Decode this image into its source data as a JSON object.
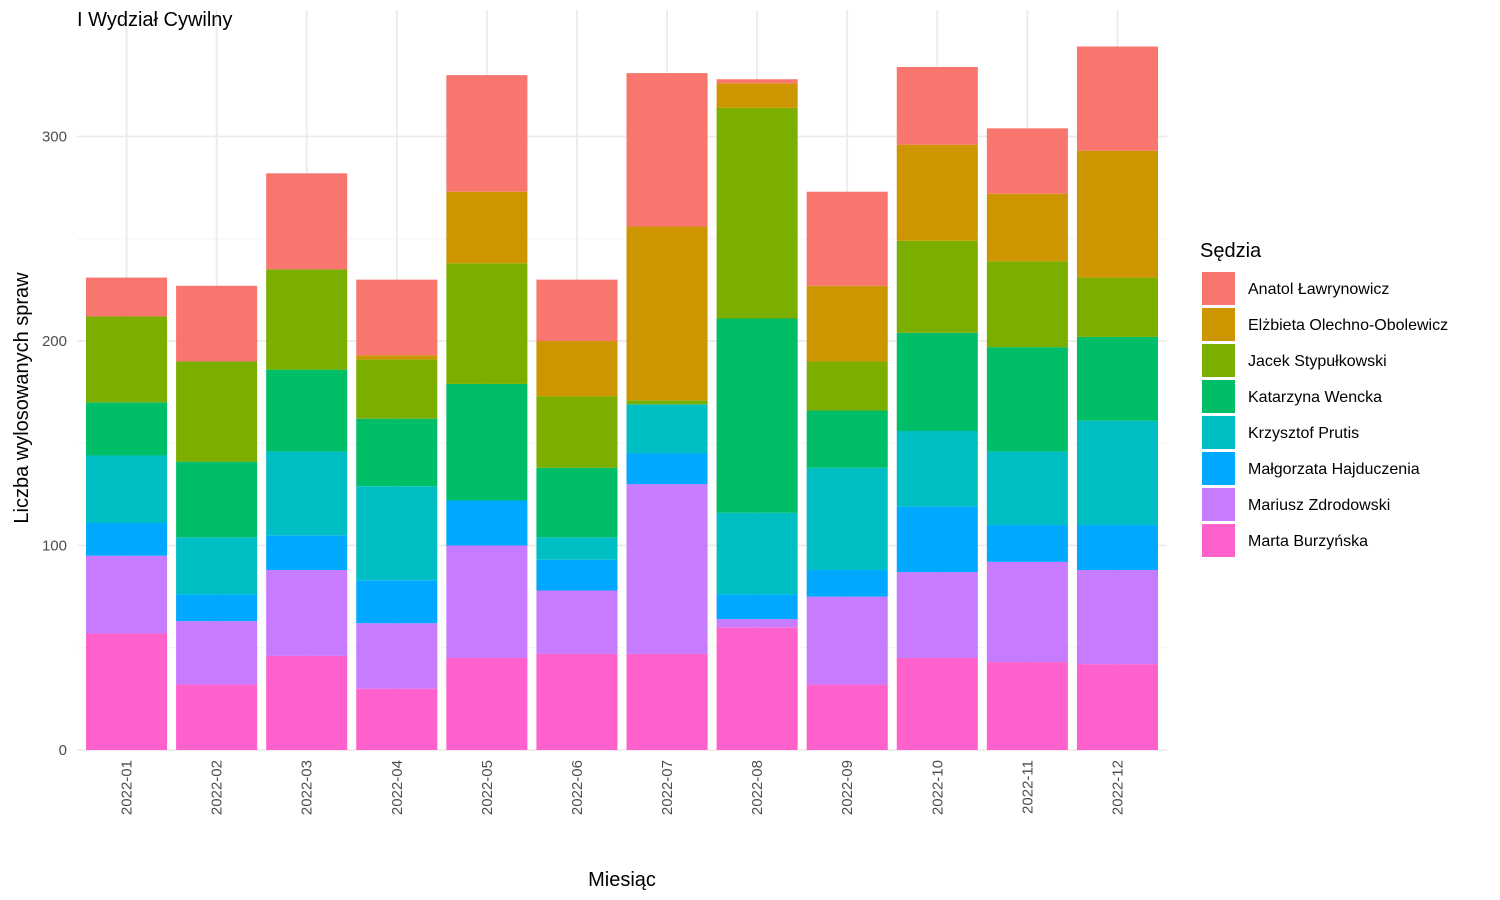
{
  "chart_data": {
    "type": "bar",
    "stacked": true,
    "title": "I Wydział Cywilny",
    "xlabel": "Miesiąc",
    "ylabel": "Liczba wylosowanych spraw",
    "legend_title": "Sędzia",
    "legend_position": "right",
    "grid": true,
    "ylim": [
      0,
      345
    ],
    "yticks": [
      0,
      100,
      200,
      300
    ],
    "categories": [
      "2022-01",
      "2022-02",
      "2022-03",
      "2022-04",
      "2022-05",
      "2022-06",
      "2022-07",
      "2022-08",
      "2022-09",
      "2022-10",
      "2022-11",
      "2022-12"
    ],
    "stack_order_bottom_to_top": [
      "Marta Burzyńska",
      "Mariusz Zdrodowski",
      "Małgorzata Hajduczenia",
      "Krzysztof Prutis",
      "Katarzyna Wencka",
      "Jacek Stypułkowski",
      "Elżbieta Olechno-Obolewicz",
      "Anatol Ławrynowicz"
    ],
    "series": [
      {
        "name": "Anatol Ławrynowicz",
        "color": "#F8766D",
        "values": [
          19,
          37,
          47,
          37,
          57,
          30,
          75,
          2,
          46,
          38,
          32,
          51
        ]
      },
      {
        "name": "Elżbieta Olechno-Obolewicz",
        "color": "#CD9600",
        "values": [
          0,
          0,
          0,
          2,
          35,
          27,
          85,
          12,
          37,
          47,
          33,
          62
        ]
      },
      {
        "name": "Jacek Stypułkowski",
        "color": "#7CAE00",
        "values": [
          42,
          49,
          49,
          29,
          59,
          35,
          2,
          103,
          24,
          45,
          42,
          29
        ]
      },
      {
        "name": "Katarzyna Wencka",
        "color": "#00BE67",
        "values": [
          26,
          37,
          40,
          33,
          57,
          34,
          0,
          95,
          28,
          48,
          51,
          41
        ]
      },
      {
        "name": "Krzysztof Prutis",
        "color": "#00BFC4",
        "values": [
          33,
          28,
          41,
          46,
          0,
          11,
          24,
          40,
          50,
          37,
          36,
          51
        ]
      },
      {
        "name": "Małgorzata Hajduczenia",
        "color": "#00A9FF",
        "values": [
          16,
          13,
          17,
          21,
          22,
          15,
          15,
          12,
          13,
          32,
          18,
          22
        ]
      },
      {
        "name": "Mariusz Zdrodowski",
        "color": "#C77CFF",
        "values": [
          38,
          31,
          42,
          32,
          55,
          31,
          83,
          4,
          43,
          42,
          49,
          46
        ]
      },
      {
        "name": "Marta Burzyńska",
        "color": "#FF61CC",
        "values": [
          57,
          32,
          46,
          30,
          45,
          47,
          47,
          60,
          32,
          45,
          43,
          42
        ]
      }
    ]
  }
}
